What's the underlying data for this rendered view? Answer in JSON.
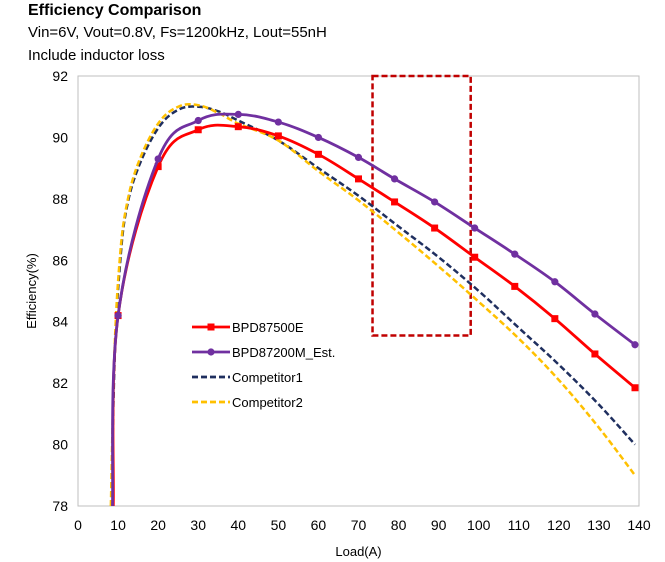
{
  "chart_data": {
    "type": "line",
    "title": "Efficiency Comparison",
    "subtitle": [
      "Vin=6V, Vout=0.8V, Fs=1200kHz, Lout=55nH",
      "Include inductor loss"
    ],
    "xlabel": "Load(A)",
    "ylabel": "Efficiency(%)",
    "xlim": [
      0,
      140
    ],
    "ylim": [
      78,
      92
    ],
    "xticks": [
      "0",
      "10",
      "20",
      "30",
      "40",
      "50",
      "60",
      "70",
      "80",
      "90",
      "100",
      "110",
      "120",
      "130",
      "140"
    ],
    "yticks": [
      "78",
      "80",
      "82",
      "84",
      "86",
      "88",
      "90",
      "92"
    ],
    "grid": false,
    "legend_position": "center-left",
    "series": [
      {
        "name": "BPD87500E",
        "color": "#ff0000",
        "style": "solid",
        "marker": "square",
        "x": [
          8.8,
          10,
          20,
          30,
          40,
          50,
          60,
          70,
          79,
          89,
          99,
          109,
          119,
          129,
          139
        ],
        "y": [
          78,
          84.2,
          89.05,
          90.25,
          90.35,
          90.05,
          89.45,
          88.65,
          87.9,
          87.05,
          86.1,
          85.15,
          84.1,
          82.95,
          81.85
        ]
      },
      {
        "name": "BPD87200M_Est.",
        "color": "#7030a0",
        "style": "solid",
        "marker": "circle",
        "x": [
          8.6,
          10,
          20,
          30,
          40,
          50,
          60,
          70,
          79,
          89,
          99,
          109,
          119,
          129,
          139
        ],
        "y": [
          78,
          84.2,
          89.3,
          90.55,
          90.75,
          90.5,
          90.0,
          89.35,
          88.65,
          87.9,
          87.05,
          86.2,
          85.3,
          84.25,
          83.25
        ]
      },
      {
        "name": "Competitor1",
        "color": "#1f2f5f",
        "style": "dashed",
        "marker": "none",
        "x": [
          8.3,
          9.2,
          10.5,
          12,
          15,
          20,
          25,
          30,
          35,
          40,
          50,
          60,
          70,
          80,
          90,
          100,
          110,
          120,
          130,
          139
        ],
        "y": [
          78,
          83,
          85.9,
          87.6,
          89.0,
          90.3,
          90.9,
          91.0,
          90.85,
          90.55,
          89.9,
          89.0,
          88.1,
          87.1,
          86.1,
          85.0,
          83.8,
          82.6,
          81.3,
          80.0
        ]
      },
      {
        "name": "Competitor2",
        "color": "#ffc000",
        "style": "dashed",
        "marker": "none",
        "x": [
          8.2,
          9.1,
          10.4,
          12,
          15,
          20,
          25,
          30,
          35,
          40,
          50,
          60,
          70,
          80,
          90,
          100,
          110,
          120,
          130,
          139
        ],
        "y": [
          78,
          83,
          86.0,
          87.7,
          89.15,
          90.45,
          91.0,
          91.05,
          90.8,
          90.45,
          89.9,
          88.9,
          87.95,
          86.9,
          85.8,
          84.65,
          83.45,
          82.1,
          80.55,
          79.0
        ]
      }
    ],
    "annotation": {
      "type": "dashed-rectangle",
      "color": "#c00000",
      "x_range": [
        73.5,
        98
      ],
      "y_range": [
        83.55,
        92
      ]
    }
  }
}
